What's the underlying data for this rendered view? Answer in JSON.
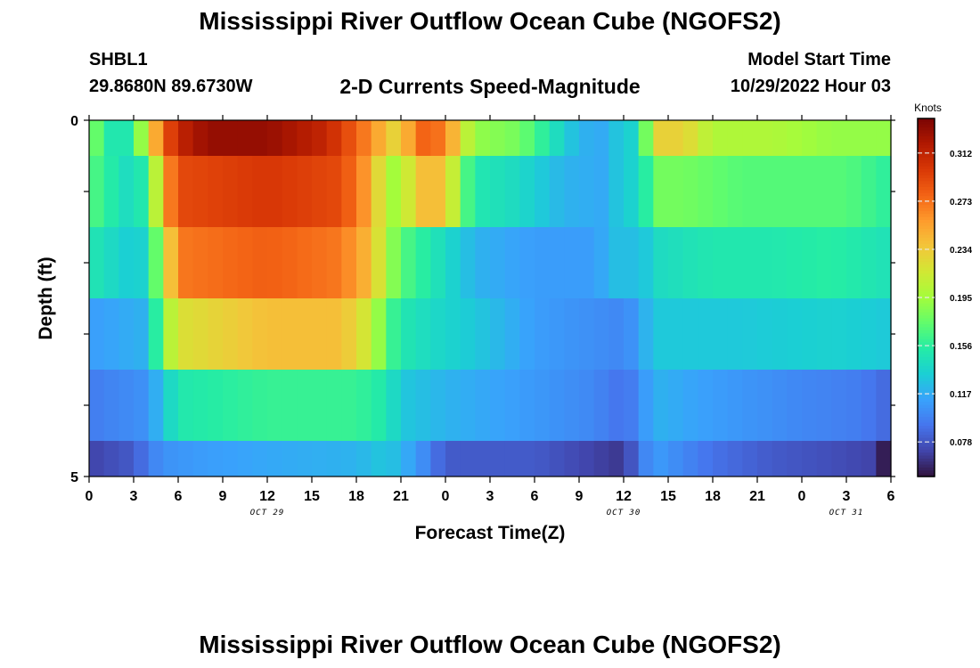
{
  "header": {
    "title": "Mississippi River Outflow Ocean Cube (NGOFS2)",
    "station": "SHBL1",
    "location": "29.8680N  89.6730W",
    "subtitle": "2-D Currents Speed-Magnitude",
    "model_label": "Model Start Time",
    "model_time": "10/29/2022 Hour 03"
  },
  "footer": {
    "title": "Mississippi River Outflow Ocean Cube (NGOFS2)"
  },
  "chart_data": {
    "type": "heatmap",
    "title": "2-D Currents Speed-Magnitude",
    "xlabel": "Forecast Time(Z)",
    "ylabel": "Depth (ft)",
    "x_tick_labels": [
      "0",
      "3",
      "6",
      "9",
      "12",
      "15",
      "18",
      "21",
      "0",
      "3",
      "6",
      "9",
      "12",
      "15",
      "18",
      "21",
      "0",
      "3",
      "6"
    ],
    "x_date_labels": [
      {
        "hour_index": 12,
        "text": "OCT 29"
      },
      {
        "hour_index": 36,
        "text": "OCT 30"
      },
      {
        "hour_index": 51,
        "text": "OCT 31"
      }
    ],
    "x_range_hours": [
      0,
      54
    ],
    "y_tick_labels": [
      "0",
      "5"
    ],
    "ylim": [
      0,
      5
    ],
    "colorbar": {
      "title": "Knots",
      "ticks": [
        "0.312",
        "0.273",
        "0.234",
        "0.195",
        "0.156",
        "0.117",
        "0.078"
      ],
      "range": [
        0.05,
        0.34
      ],
      "colors": [
        "#30123b",
        "#4145ab",
        "#4675ed",
        "#39a2fc",
        "#1bcfd4",
        "#24eca6",
        "#61fc6c",
        "#a4fc3b",
        "#d1e834",
        "#f3c63a",
        "#fe9b2d",
        "#f36315",
        "#d93806",
        "#b11901",
        "#7a0403"
      ]
    },
    "bands": [
      {
        "depth_range": [
          0,
          0.5
        ],
        "knots": [
          [
            0,
            0.19
          ],
          [
            1,
            0.16
          ],
          [
            2,
            0.14
          ],
          [
            3,
            0.16
          ],
          [
            4,
            0.22
          ],
          [
            5,
            0.28
          ],
          [
            6,
            0.31
          ],
          [
            8,
            0.33
          ],
          [
            12,
            0.33
          ],
          [
            16,
            0.31
          ],
          [
            18,
            0.28
          ],
          [
            20,
            0.24
          ],
          [
            21,
            0.22
          ],
          [
            22,
            0.28
          ],
          [
            24,
            0.27
          ],
          [
            25,
            0.22
          ],
          [
            26,
            0.19
          ],
          [
            29,
            0.18
          ],
          [
            31,
            0.15
          ],
          [
            33,
            0.12
          ],
          [
            35,
            0.115
          ],
          [
            36,
            0.14
          ],
          [
            37,
            0.13
          ],
          [
            38,
            0.23
          ],
          [
            40,
            0.23
          ],
          [
            42,
            0.2
          ],
          [
            46,
            0.2
          ],
          [
            50,
            0.19
          ],
          [
            54,
            0.19
          ]
        ]
      },
      {
        "depth_range": [
          0.5,
          1.5
        ],
        "knots": [
          [
            0,
            0.17
          ],
          [
            1,
            0.16
          ],
          [
            2,
            0.145
          ],
          [
            3,
            0.14
          ],
          [
            4,
            0.16
          ],
          [
            5,
            0.25
          ],
          [
            6,
            0.29
          ],
          [
            12,
            0.3
          ],
          [
            17,
            0.29
          ],
          [
            19,
            0.25
          ],
          [
            20,
            0.2
          ],
          [
            21,
            0.19
          ],
          [
            22,
            0.24
          ],
          [
            24,
            0.24
          ],
          [
            25,
            0.18
          ],
          [
            26,
            0.15
          ],
          [
            29,
            0.14
          ],
          [
            32,
            0.12
          ],
          [
            35,
            0.115
          ],
          [
            36,
            0.14
          ],
          [
            37,
            0.13
          ],
          [
            38,
            0.18
          ],
          [
            40,
            0.18
          ],
          [
            44,
            0.17
          ],
          [
            48,
            0.17
          ],
          [
            51,
            0.17
          ],
          [
            54,
            0.155
          ]
        ]
      },
      {
        "depth_range": [
          1.5,
          2.5
        ],
        "knots": [
          [
            0,
            0.15
          ],
          [
            3,
            0.13
          ],
          [
            4,
            0.14
          ],
          [
            5,
            0.21
          ],
          [
            6,
            0.27
          ],
          [
            12,
            0.28
          ],
          [
            17,
            0.27
          ],
          [
            19,
            0.24
          ],
          [
            20,
            0.2
          ],
          [
            21,
            0.17
          ],
          [
            23,
            0.15
          ],
          [
            26,
            0.12
          ],
          [
            30,
            0.11
          ],
          [
            34,
            0.11
          ],
          [
            36,
            0.13
          ],
          [
            37,
            0.12
          ],
          [
            38,
            0.14
          ],
          [
            42,
            0.15
          ],
          [
            46,
            0.15
          ],
          [
            50,
            0.155
          ],
          [
            54,
            0.145
          ]
        ]
      },
      {
        "depth_range": [
          2.5,
          3.5
        ],
        "knots": [
          [
            0,
            0.11
          ],
          [
            4,
            0.12
          ],
          [
            5,
            0.19
          ],
          [
            6,
            0.22
          ],
          [
            12,
            0.24
          ],
          [
            17,
            0.24
          ],
          [
            19,
            0.21
          ],
          [
            20,
            0.17
          ],
          [
            21,
            0.15
          ],
          [
            23,
            0.14
          ],
          [
            26,
            0.13
          ],
          [
            30,
            0.11
          ],
          [
            36,
            0.1
          ],
          [
            37,
            0.11
          ],
          [
            38,
            0.13
          ],
          [
            44,
            0.13
          ],
          [
            50,
            0.135
          ],
          [
            54,
            0.13
          ]
        ]
      },
      {
        "depth_range": [
          3.5,
          4.5
        ],
        "knots": [
          [
            0,
            0.095
          ],
          [
            4,
            0.105
          ],
          [
            5,
            0.13
          ],
          [
            6,
            0.15
          ],
          [
            12,
            0.16
          ],
          [
            18,
            0.16
          ],
          [
            20,
            0.15
          ],
          [
            21,
            0.13
          ],
          [
            24,
            0.12
          ],
          [
            29,
            0.11
          ],
          [
            34,
            0.1
          ],
          [
            36,
            0.09
          ],
          [
            37,
            0.1
          ],
          [
            38,
            0.12
          ],
          [
            42,
            0.11
          ],
          [
            48,
            0.1
          ],
          [
            52,
            0.095
          ],
          [
            54,
            0.085
          ]
        ]
      },
      {
        "depth_range": [
          4.5,
          5
        ],
        "knots": [
          [
            0,
            0.07
          ],
          [
            3,
            0.08
          ],
          [
            4,
            0.095
          ],
          [
            5,
            0.105
          ],
          [
            8,
            0.11
          ],
          [
            12,
            0.115
          ],
          [
            18,
            0.12
          ],
          [
            20,
            0.13
          ],
          [
            22,
            0.11
          ],
          [
            24,
            0.08
          ],
          [
            30,
            0.08
          ],
          [
            34,
            0.07
          ],
          [
            36,
            0.065
          ],
          [
            37,
            0.09
          ],
          [
            38,
            0.11
          ],
          [
            42,
            0.09
          ],
          [
            46,
            0.08
          ],
          [
            50,
            0.075
          ],
          [
            53,
            0.07
          ],
          [
            54,
            0.04
          ]
        ]
      }
    ]
  }
}
